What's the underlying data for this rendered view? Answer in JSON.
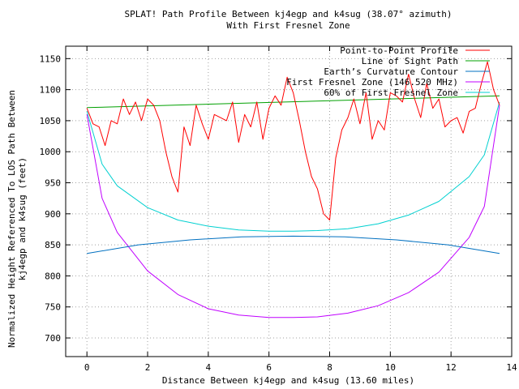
{
  "chart_data": {
    "type": "line",
    "title": "SPLAT! Path Profile Between kj4egp and k4sug (38.07° azimuth)",
    "subtitle": "With First Fresnel Zone",
    "xlabel": "Distance Between kj4egp and k4sug (13.60 miles)",
    "ylabel_line1": "Normalized Height Referenced To LOS Path Between",
    "ylabel_line2": "kj4egp and k4sug (feet)",
    "xlim": [
      -0.7,
      14
    ],
    "ylim": [
      670,
      1170
    ],
    "x_ticks": [
      0,
      2,
      4,
      6,
      8,
      10,
      12,
      14
    ],
    "x_tick_labels": [
      "0",
      "2",
      "4",
      "6",
      "8",
      "10",
      "12",
      "14"
    ],
    "y_ticks": [
      700,
      750,
      800,
      850,
      900,
      950,
      1000,
      1050,
      1100,
      1150
    ],
    "y_tick_labels": [
      "700",
      "750",
      "800",
      "850",
      "900",
      "950",
      "1000",
      "1050",
      "1100",
      "1150"
    ],
    "grid": true,
    "legend_position": "top-right",
    "path_length": 13.6,
    "series": [
      {
        "name": "Point-to-Point Profile",
        "color": "#ff0000",
        "x": [
          0,
          0.2,
          0.4,
          0.6,
          0.8,
          1.0,
          1.2,
          1.4,
          1.6,
          1.8,
          2.0,
          2.2,
          2.4,
          2.6,
          2.8,
          3.0,
          3.2,
          3.4,
          3.6,
          3.8,
          4.0,
          4.2,
          4.4,
          4.6,
          4.8,
          5.0,
          5.2,
          5.4,
          5.6,
          5.8,
          6.0,
          6.2,
          6.4,
          6.6,
          6.8,
          7.0,
          7.2,
          7.4,
          7.6,
          7.8,
          8.0,
          8.2,
          8.4,
          8.6,
          8.8,
          9.0,
          9.2,
          9.4,
          9.6,
          9.8,
          10.0,
          10.2,
          10.4,
          10.6,
          10.8,
          11.0,
          11.2,
          11.4,
          11.6,
          11.8,
          12.0,
          12.2,
          12.4,
          12.6,
          12.8,
          13.0,
          13.2,
          13.4,
          13.6
        ],
        "values": [
          1070,
          1045,
          1040,
          1010,
          1050,
          1045,
          1085,
          1060,
          1080,
          1050,
          1085,
          1075,
          1050,
          1000,
          960,
          935,
          1040,
          1010,
          1075,
          1045,
          1020,
          1060,
          1055,
          1050,
          1080,
          1015,
          1060,
          1040,
          1080,
          1020,
          1070,
          1090,
          1075,
          1120,
          1095,
          1050,
          1000,
          960,
          940,
          900,
          890,
          990,
          1035,
          1055,
          1085,
          1045,
          1095,
          1020,
          1050,
          1035,
          1095,
          1090,
          1080,
          1125,
          1085,
          1055,
          1110,
          1070,
          1085,
          1040,
          1050,
          1055,
          1030,
          1065,
          1070,
          1110,
          1145,
          1100,
          1075
        ]
      },
      {
        "name": "Line of Sight Path",
        "color": "#00a000",
        "x": [
          0,
          13.6
        ],
        "values": [
          1071,
          1090
        ]
      },
      {
        "name": "Earth’s Curvature Contour",
        "color": "#0070c0",
        "x": [
          0,
          1.7,
          3.4,
          5.1,
          6.8,
          8.5,
          10.2,
          11.9,
          13.6
        ],
        "values": [
          836,
          850,
          858,
          863,
          864,
          863,
          858,
          850,
          836
        ]
      },
      {
        "name": "First Fresnel Zone (146.520 MHz)",
        "color": "#c000ff",
        "x": [
          0,
          0.5,
          1.0,
          2.0,
          3.0,
          4.0,
          5.0,
          6.0,
          6.8,
          7.6,
          8.6,
          9.6,
          10.6,
          11.6,
          12.6,
          13.1,
          13.6
        ],
        "values": [
          1060,
          925,
          870,
          808,
          770,
          747,
          737,
          733,
          733,
          734,
          740,
          752,
          773,
          806,
          862,
          912,
          1075
        ]
      },
      {
        "name": "60% of First Fresnel Zone",
        "color": "#00d0d0",
        "x": [
          0,
          0.5,
          1.0,
          2.0,
          3.0,
          4.0,
          5.0,
          6.0,
          6.8,
          7.6,
          8.6,
          9.6,
          10.6,
          11.6,
          12.6,
          13.1,
          13.6
        ],
        "values": [
          1065,
          980,
          945,
          910,
          890,
          880,
          874,
          872,
          872,
          873,
          876,
          884,
          898,
          920,
          960,
          995,
          1080
        ]
      }
    ]
  }
}
